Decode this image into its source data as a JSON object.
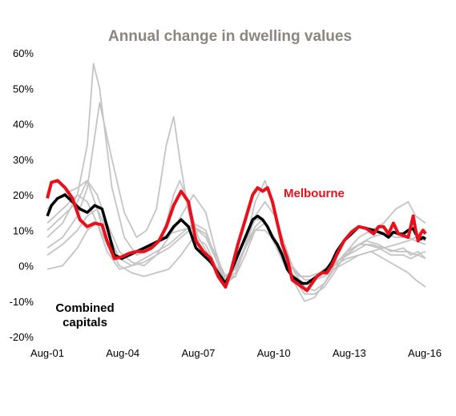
{
  "chart_data": {
    "type": "line",
    "title": "Annual change in dwelling values",
    "xlabel": "",
    "ylabel": "",
    "ylim": [
      -20,
      60
    ],
    "yticks": [
      "60%",
      "50%",
      "40%",
      "30%",
      "20%",
      "10%",
      "0%",
      "-10%",
      "-20%"
    ],
    "xticks": [
      "Aug-01",
      "Aug-04",
      "Aug-07",
      "Aug-10",
      "Aug-13",
      "Aug-16"
    ],
    "xlim": [
      2001.58,
      2016.9
    ],
    "grid": false,
    "colors": {
      "melbourne": "#e8111b",
      "combined": "#000000",
      "others": "#c4c4c4",
      "title": "#8c8680"
    },
    "annotations": [
      {
        "text": "Melbourne",
        "series": "melbourne",
        "color": "#e8111b"
      },
      {
        "text_lines": [
          "Combined",
          "capitals"
        ],
        "series": "combined",
        "color": "#000000"
      }
    ],
    "series": [
      {
        "key": "melbourne",
        "x": [
          2001.58,
          2001.75,
          2002.0,
          2002.3,
          2002.6,
          2002.9,
          2003.2,
          2003.5,
          2003.8,
          2004.0,
          2004.3,
          2004.6,
          2004.9,
          2005.2,
          2005.5,
          2005.8,
          2006.1,
          2006.4,
          2006.7,
          2007.0,
          2007.3,
          2007.6,
          2007.9,
          2008.2,
          2008.5,
          2008.8,
          2009.0,
          2009.3,
          2009.6,
          2009.9,
          2010.1,
          2010.3,
          2010.5,
          2010.7,
          2010.9,
          2011.1,
          2011.3,
          2011.5,
          2011.7,
          2011.9,
          2012.1,
          2012.3,
          2012.5,
          2012.7,
          2012.9,
          2013.1,
          2013.3,
          2013.6,
          2013.9,
          2014.2,
          2014.5,
          2014.8,
          2015.0,
          2015.2,
          2015.4,
          2015.6,
          2015.8,
          2016.0,
          2016.2,
          2016.4,
          2016.5,
          2016.6,
          2016.7,
          2016.8,
          2016.9
        ],
        "values": [
          19,
          23.5,
          24,
          22,
          19,
          13,
          11,
          12,
          11.5,
          7,
          2,
          2.5,
          3.5,
          4,
          4,
          5,
          7,
          11,
          17,
          21,
          18,
          7,
          4,
          2,
          -3,
          -6,
          -2,
          6,
          13,
          20,
          22,
          21,
          22,
          18,
          12,
          6,
          2,
          -4,
          -5,
          -6,
          -7,
          -5,
          -3,
          -2,
          -2,
          0,
          3,
          7,
          9.5,
          11,
          10.5,
          9,
          11,
          11,
          9,
          12,
          9,
          8.5,
          8,
          14,
          10,
          7,
          9,
          10,
          9
        ]
      },
      {
        "key": "combined",
        "x": [
          2001.58,
          2001.75,
          2002.0,
          2002.3,
          2002.6,
          2002.9,
          2003.2,
          2003.5,
          2003.8,
          2004.0,
          2004.3,
          2004.6,
          2004.9,
          2005.2,
          2005.5,
          2005.8,
          2006.1,
          2006.4,
          2006.7,
          2007.0,
          2007.3,
          2007.6,
          2007.9,
          2008.2,
          2008.5,
          2008.8,
          2009.0,
          2009.3,
          2009.6,
          2009.9,
          2010.1,
          2010.3,
          2010.5,
          2010.7,
          2010.9,
          2011.1,
          2011.3,
          2011.5,
          2011.7,
          2011.9,
          2012.1,
          2012.3,
          2012.5,
          2012.7,
          2012.9,
          2013.1,
          2013.3,
          2013.6,
          2013.9,
          2014.2,
          2014.5,
          2014.8,
          2015.0,
          2015.2,
          2015.4,
          2015.6,
          2015.8,
          2016.0,
          2016.2,
          2016.4,
          2016.5,
          2016.6,
          2016.7,
          2016.8,
          2016.9
        ],
        "values": [
          14,
          17,
          19,
          20,
          18,
          16,
          15,
          17,
          16,
          11,
          3,
          2,
          3,
          4,
          5,
          6,
          7,
          8,
          11,
          13,
          11,
          5,
          3,
          1,
          -2,
          -5,
          -2,
          3,
          8,
          13,
          14,
          13,
          11,
          8,
          6,
          3,
          -1,
          -3,
          -4,
          -5,
          -5,
          -4,
          -3,
          -2,
          -1,
          1,
          4,
          7,
          9,
          11,
          10.5,
          10,
          9.5,
          9,
          8,
          9.5,
          9,
          9,
          10,
          10.5,
          9,
          8,
          7.5,
          8,
          7.5
        ]
      },
      {
        "key": "gray-1",
        "x": [
          2001.58,
          2002.2,
          2002.8,
          2003.2,
          2003.45,
          2003.7,
          2004.2,
          2004.7,
          2005.2,
          2005.6,
          2006.0,
          2006.4,
          2006.7,
          2006.95,
          2007.3,
          2007.7,
          2008.2,
          2008.7,
          2009.0,
          2009.5,
          2010.0,
          2010.3,
          2010.6,
          2011.0,
          2011.4,
          2011.8,
          2012.2,
          2012.6,
          2013.0,
          2013.5,
          2014.0,
          2014.5,
          2015.0,
          2015.5,
          2016.0,
          2016.3,
          2016.6,
          2016.9
        ],
        "values": [
          5,
          8,
          14,
          22,
          34,
          46,
          30,
          15,
          8,
          10,
          16,
          34,
          42,
          30,
          15,
          6,
          1,
          -4,
          -3,
          4,
          11,
          13,
          10,
          5,
          0,
          -3,
          -3,
          -2,
          0,
          2,
          5,
          7,
          6,
          4,
          5,
          3,
          4,
          2
        ]
      },
      {
        "key": "gray-2",
        "x": [
          2001.58,
          2002.2,
          2002.8,
          2003.2,
          2003.45,
          2003.7,
          2004.2,
          2004.7,
          2005.2,
          2005.6,
          2006.0,
          2006.4,
          2006.7,
          2006.95,
          2007.3,
          2007.7,
          2008.2,
          2008.7,
          2009.0,
          2009.5,
          2010.0,
          2010.3,
          2010.6,
          2011.0,
          2011.4,
          2011.8,
          2012.2,
          2012.6,
          2013.0,
          2013.5,
          2014.0,
          2014.5,
          2015.0,
          2015.5,
          2016.0,
          2016.3,
          2016.6,
          2016.9
        ],
        "values": [
          8,
          12,
          20,
          34,
          57,
          50,
          22,
          8,
          3,
          4,
          6,
          12,
          20,
          24,
          18,
          8,
          2,
          -3,
          -2,
          6,
          13,
          13,
          10,
          5,
          0,
          -3,
          -3,
          -2,
          0,
          2,
          4,
          6,
          5,
          3,
          3,
          2,
          3,
          2
        ]
      },
      {
        "key": "gray-3",
        "x": [
          2001.58,
          2002.2,
          2002.8,
          2003.2,
          2003.6,
          2004.0,
          2004.5,
          2005.0,
          2005.5,
          2006.0,
          2006.5,
          2007.0,
          2007.5,
          2008.0,
          2008.4,
          2008.8,
          2009.2,
          2009.6,
          2010.0,
          2010.4,
          2010.8,
          2011.2,
          2011.6,
          2012.0,
          2012.4,
          2012.8,
          2013.2,
          2013.7,
          2014.2,
          2014.7,
          2015.2,
          2015.7,
          2016.2,
          2016.5,
          2016.9
        ],
        "values": [
          -1,
          0,
          5,
          10,
          12,
          6,
          0,
          -2,
          -3,
          -2,
          -1,
          3,
          8,
          6,
          0,
          -3,
          -3,
          3,
          10,
          12,
          6,
          0,
          -3,
          -5,
          -4,
          -2,
          0,
          2,
          3,
          4,
          2,
          0,
          -2,
          -4,
          -6
        ]
      },
      {
        "key": "gray-4",
        "x": [
          2001.58,
          2002.2,
          2002.8,
          2003.2,
          2003.6,
          2004.0,
          2004.5,
          2005.0,
          2005.5,
          2006.0,
          2006.5,
          2007.0,
          2007.5,
          2008.0,
          2008.4,
          2008.8,
          2009.2,
          2009.6,
          2010.0,
          2010.4,
          2010.8,
          2011.2,
          2011.6,
          2012.0,
          2012.4,
          2012.8,
          2013.2,
          2013.7,
          2014.2,
          2014.7,
          2015.2,
          2015.7,
          2016.2,
          2016.5,
          2016.9
        ],
        "values": [
          10,
          14,
          18,
          24,
          20,
          12,
          4,
          1,
          0,
          3,
          8,
          14,
          20,
          15,
          4,
          -4,
          -2,
          5,
          14,
          18,
          14,
          6,
          -2,
          -6,
          -7,
          -5,
          -1,
          3,
          6,
          8,
          9,
          8,
          8,
          7,
          6
        ]
      },
      {
        "key": "gray-5",
        "x": [
          2001.58,
          2002.2,
          2002.8,
          2003.2,
          2003.6,
          2004.0,
          2004.5,
          2005.0,
          2005.5,
          2006.0,
          2006.5,
          2007.0,
          2007.5,
          2008.0,
          2008.4,
          2008.8,
          2009.2,
          2009.6,
          2010.0,
          2010.4,
          2010.8,
          2011.2,
          2011.6,
          2012.0,
          2012.4,
          2012.8,
          2013.2,
          2013.7,
          2014.2,
          2014.7,
          2015.2,
          2015.7,
          2016.2,
          2016.5,
          2016.9
        ],
        "values": [
          16,
          20,
          22,
          24,
          16,
          6,
          2,
          3,
          5,
          7,
          9,
          10,
          11,
          8,
          2,
          -4,
          -3,
          6,
          14,
          12,
          6,
          2,
          -4,
          -8,
          -8,
          -6,
          -2,
          4,
          8,
          10,
          12,
          16,
          18,
          14,
          12
        ]
      },
      {
        "key": "gray-6",
        "x": [
          2001.58,
          2002.2,
          2002.8,
          2003.2,
          2003.6,
          2004.0,
          2004.5,
          2005.0,
          2005.5,
          2006.0,
          2006.5,
          2007.0,
          2007.5,
          2008.0,
          2008.4,
          2008.8,
          2009.2,
          2009.6,
          2010.0,
          2010.4,
          2010.8,
          2011.2,
          2011.6,
          2012.0,
          2012.4,
          2012.8,
          2013.2,
          2013.7,
          2014.2,
          2014.7,
          2015.2,
          2015.7,
          2016.2,
          2016.5,
          2016.9
        ],
        "values": [
          3,
          6,
          10,
          14,
          16,
          10,
          2,
          0,
          1,
          3,
          5,
          8,
          11,
          9,
          3,
          -3,
          -1,
          5,
          10,
          10,
          7,
          3,
          -1,
          -4,
          -4,
          -3,
          -1,
          1,
          3,
          4,
          5,
          4,
          4,
          3,
          4
        ]
      },
      {
        "key": "gray-7",
        "x": [
          2001.58,
          2002.2,
          2002.8,
          2003.2,
          2003.6,
          2004.0,
          2004.5,
          2005.0,
          2005.5,
          2006.0,
          2006.5,
          2007.0,
          2007.5,
          2008.0,
          2008.4,
          2008.8,
          2009.2,
          2009.6,
          2010.0,
          2010.4,
          2010.8,
          2011.2,
          2011.6,
          2012.0,
          2012.4,
          2012.8,
          2013.2,
          2013.7,
          2014.2,
          2014.7,
          2015.2,
          2015.7,
          2016.2,
          2016.5,
          2016.9
        ],
        "values": [
          12,
          16,
          20,
          18,
          12,
          4,
          -1,
          0,
          2,
          4,
          6,
          9,
          12,
          10,
          2,
          -5,
          -3,
          6,
          18,
          24,
          15,
          4,
          -5,
          -10,
          -9,
          -5,
          0,
          4,
          6,
          6,
          5,
          6,
          7,
          8,
          7
        ]
      }
    ]
  }
}
